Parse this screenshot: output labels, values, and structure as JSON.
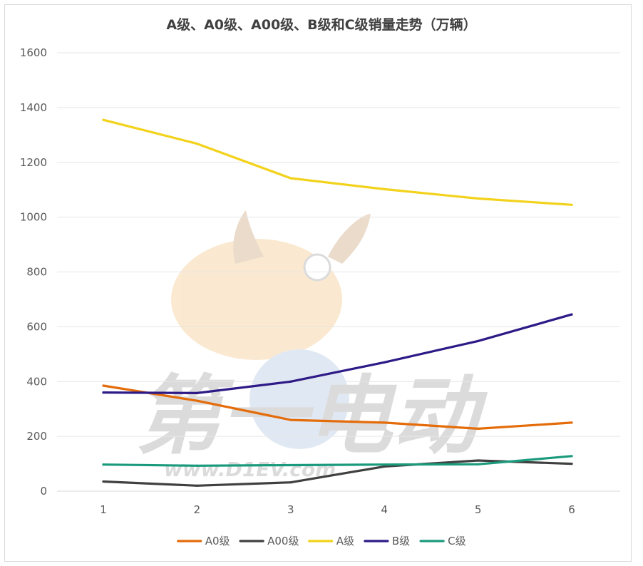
{
  "chart_data": {
    "type": "line",
    "title": "A级、A0级、A00级、B级和C级销量走势（万辆）",
    "xlabel": "",
    "ylabel": "",
    "x": [
      1,
      2,
      3,
      4,
      5,
      6
    ],
    "ylim": [
      0,
      1600
    ],
    "yticks": [
      0,
      200,
      400,
      600,
      800,
      1000,
      1200,
      1400,
      1600
    ],
    "grid": true,
    "legend_position": "bottom",
    "series": [
      {
        "name": "A0级",
        "color": "#e46c0a",
        "values": [
          385,
          330,
          260,
          250,
          228,
          250
        ]
      },
      {
        "name": "A00级",
        "color": "#404040",
        "values": [
          35,
          20,
          32,
          90,
          112,
          100
        ]
      },
      {
        "name": "A级",
        "color": "#f2d21b",
        "values": [
          1355,
          1268,
          1142,
          1102,
          1068,
          1045
        ]
      },
      {
        "name": "B级",
        "color": "#2e1a87",
        "values": [
          360,
          358,
          400,
          470,
          548,
          645
        ]
      },
      {
        "name": "C级",
        "color": "#1a9a7c",
        "values": [
          97,
          93,
          95,
          97,
          98,
          128
        ]
      }
    ]
  },
  "watermark": {
    "text_big": "第一电动",
    "text_url": "www.D1EV.com"
  }
}
